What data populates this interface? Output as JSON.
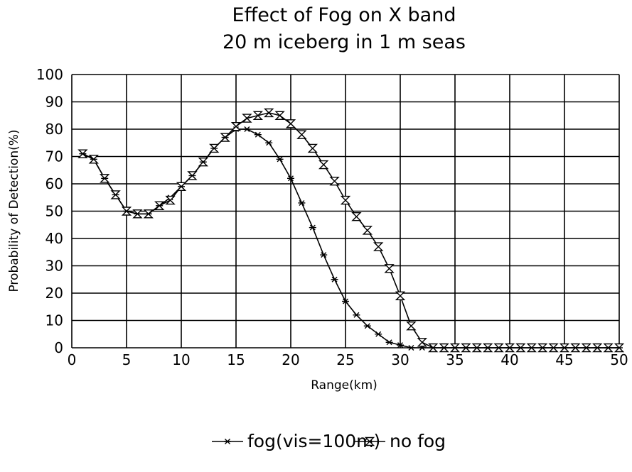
{
  "chart_data": {
    "type": "line",
    "title": "Effect of Fog on X band",
    "subtitle": "20 m iceberg in 1 m seas",
    "xlabel": "Range(km)",
    "ylabel": "Probability of Detection(%)",
    "xlim": [
      0,
      50
    ],
    "ylim": [
      0,
      100
    ],
    "xticks": [
      0,
      5,
      10,
      15,
      20,
      25,
      30,
      35,
      40,
      45,
      50
    ],
    "yticks": [
      0,
      10,
      20,
      30,
      40,
      50,
      60,
      70,
      80,
      90,
      100
    ],
    "xtick_labels": [
      "0",
      "5",
      "10",
      "15",
      "20",
      "25",
      "30",
      "35",
      "40",
      "45",
      "50"
    ],
    "ytick_labels": [
      "0",
      "10",
      "20",
      "30",
      "40",
      "50",
      "60",
      "70",
      "80",
      "90",
      "100"
    ],
    "grid": true,
    "legend_position": "bottom-center",
    "series": [
      {
        "name": "fog(vis=100m)",
        "marker": "asterisk",
        "x": [
          1,
          2,
          3,
          4,
          5,
          6,
          7,
          8,
          9,
          10,
          11,
          12,
          13,
          14,
          15,
          16,
          17,
          18,
          19,
          20,
          21,
          22,
          23,
          24,
          25,
          26,
          27,
          28,
          29,
          30,
          31,
          32,
          33,
          34,
          35,
          36,
          37,
          38,
          39,
          40,
          41,
          42,
          43,
          44,
          45,
          46,
          47,
          48,
          49,
          50
        ],
        "y": [
          71,
          69,
          62,
          56,
          50,
          49,
          49,
          52,
          55,
          59,
          63,
          68,
          73,
          77,
          80,
          80,
          78,
          75,
          69,
          62,
          53,
          44,
          34,
          25,
          17,
          12,
          8,
          5,
          2,
          1,
          0,
          0,
          0,
          0,
          0,
          0,
          0,
          0,
          0,
          0,
          0,
          0,
          0,
          0,
          0,
          0,
          0,
          0,
          0,
          0
        ]
      },
      {
        "name": "no fog",
        "marker": "hourglass",
        "x": [
          1,
          2,
          3,
          4,
          5,
          6,
          7,
          8,
          9,
          10,
          11,
          12,
          13,
          14,
          15,
          16,
          17,
          18,
          19,
          20,
          21,
          22,
          23,
          24,
          25,
          26,
          27,
          28,
          29,
          30,
          31,
          32,
          33,
          34,
          35,
          36,
          37,
          38,
          39,
          40,
          41,
          42,
          43,
          44,
          45,
          46,
          47,
          48,
          49,
          50
        ],
        "y": [
          71,
          69,
          62,
          56,
          50,
          49,
          49,
          52,
          54,
          59,
          63,
          68,
          73,
          77,
          81,
          84,
          85,
          86,
          85,
          82,
          78,
          73,
          67,
          61,
          54,
          48,
          43,
          37,
          29,
          19,
          8,
          2,
          0,
          0,
          0,
          0,
          0,
          0,
          0,
          0,
          0,
          0,
          0,
          0,
          0,
          0,
          0,
          0,
          0,
          0
        ]
      }
    ]
  }
}
